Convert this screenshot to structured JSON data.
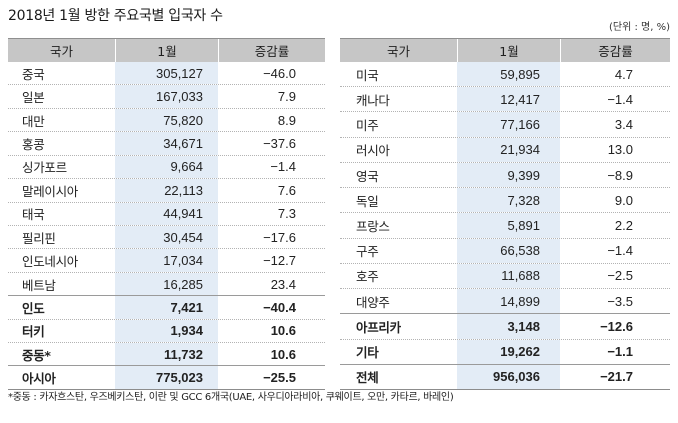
{
  "colors": {
    "header_bg": "#c6c6c6",
    "highlight_column_bg": "#e3ecf6",
    "text": "#222222",
    "rule": "#8c8c8c"
  },
  "chart_data": {
    "type": "table",
    "title": "2018년 1월 방한 주요국별 입국자 수",
    "unit_note": "(단위 : 명, %)",
    "footnote": "*중동 : 카자흐스탄, 우즈베키스탄, 이란 및 GCC 6개국(UAE, 사우디아라비아, 쿠웨이트, 오만, 카타르, 바레인)",
    "tables": [
      {
        "columns": [
          "국가",
          "1월",
          "증감률"
        ],
        "rows": [
          {
            "country": "중국",
            "january": "305,127",
            "change": "−46.0"
          },
          {
            "country": "일본",
            "january": "167,033",
            "change": "7.9"
          },
          {
            "country": "대만",
            "january": "75,820",
            "change": "8.9"
          },
          {
            "country": "홍콩",
            "january": "34,671",
            "change": "−37.6"
          },
          {
            "country": "싱가포르",
            "january": "9,664",
            "change": "−1.4"
          },
          {
            "country": "말레이시아",
            "january": "22,113",
            "change": "7.6"
          },
          {
            "country": "태국",
            "january": "44,941",
            "change": "7.3"
          },
          {
            "country": "필리핀",
            "january": "30,454",
            "change": "−17.6"
          },
          {
            "country": "인도네시아",
            "january": "17,034",
            "change": "−12.7"
          },
          {
            "country": "베트남",
            "january": "16,285",
            "change": "23.4"
          },
          {
            "country": "인도",
            "january": "7,421",
            "change": "−40.4"
          },
          {
            "country": "터키",
            "january": "1,934",
            "change": "10.6"
          },
          {
            "country": "중동*",
            "january": "11,732",
            "change": "10.6"
          },
          {
            "country": "아시아",
            "january": "775,023",
            "change": "−25.5"
          }
        ]
      },
      {
        "columns": [
          "국가",
          "1월",
          "증감률"
        ],
        "rows": [
          {
            "country": "미국",
            "january": "59,895",
            "change": "4.7"
          },
          {
            "country": "캐나다",
            "january": "12,417",
            "change": "−1.4"
          },
          {
            "country": "미주",
            "january": "77,166",
            "change": "3.4"
          },
          {
            "country": "러시아",
            "january": "21,934",
            "change": "13.0"
          },
          {
            "country": "영국",
            "january": "9,399",
            "change": "−8.9"
          },
          {
            "country": "독일",
            "january": "7,328",
            "change": "9.0"
          },
          {
            "country": "프랑스",
            "january": "5,891",
            "change": "2.2"
          },
          {
            "country": "구주",
            "january": "66,538",
            "change": "−1.4"
          },
          {
            "country": "호주",
            "january": "11,688",
            "change": "−2.5"
          },
          {
            "country": "대양주",
            "january": "14,899",
            "change": "−3.5"
          },
          {
            "country": "아프리카",
            "january": "3,148",
            "change": "−12.6"
          },
          {
            "country": "기타",
            "january": "19,262",
            "change": "−1.1"
          },
          {
            "country": "전체",
            "january": "956,036",
            "change": "−21.7"
          }
        ]
      }
    ]
  }
}
